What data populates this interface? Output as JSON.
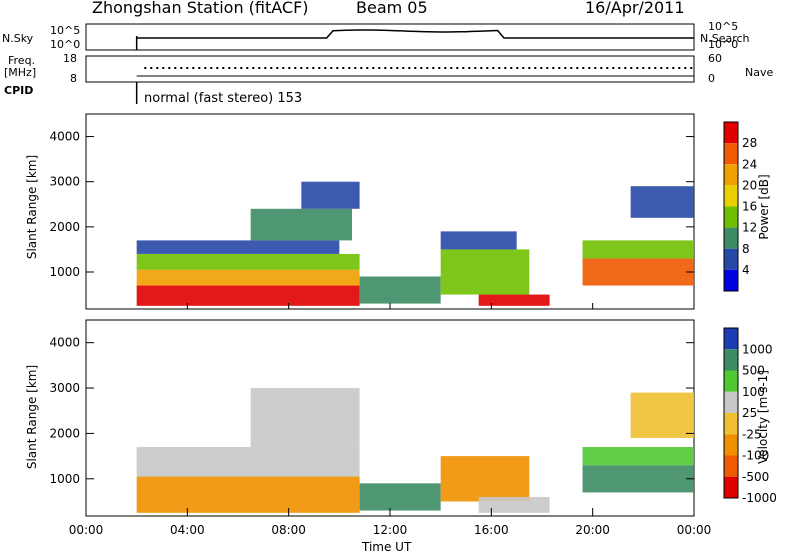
{
  "header": {
    "station": "Zhongshan Station (fitACF)",
    "beam": "Beam 05",
    "date": "16/Apr/2011"
  },
  "top_panels": {
    "sky_label": "N.Sky",
    "search_label": "N.Search",
    "sky_ticks": [
      "10^5",
      "10^0"
    ],
    "search_ticks": [
      "10^5",
      "10^0"
    ],
    "freq_label_1": "Freq.",
    "freq_label_2": "[MHz]",
    "freq_ticks": [
      "18",
      "8"
    ],
    "nave_label": "Nave",
    "nave_ticks": [
      "60",
      "0"
    ],
    "cpid_label": "CPID",
    "cpid_text": "normal (fast stereo) 153"
  },
  "chart_data": [
    {
      "type": "heatmap",
      "name": "power",
      "ylabel": "Slant Range [km]",
      "y_ticks": [
        "4000",
        "3000",
        "2000",
        "1000"
      ],
      "ylim": [
        180,
        4500
      ],
      "colorbar": {
        "label": "Power [dB]",
        "ticks": [
          "28",
          "24",
          "20",
          "16",
          "12",
          "8",
          "4"
        ],
        "colors": [
          "#e00000",
          "#f05a00",
          "#f0a000",
          "#e8d000",
          "#70c000",
          "#3c8c64",
          "#2848a8",
          "#0000e0"
        ]
      },
      "regions": [
        {
          "t0": 2.0,
          "t1": 10.8,
          "r0": 250,
          "r1": 700,
          "level": 0
        },
        {
          "t0": 2.0,
          "t1": 10.8,
          "r0": 700,
          "r1": 1050,
          "level": 2
        },
        {
          "t0": 2.0,
          "t1": 10.8,
          "r0": 1050,
          "r1": 1400,
          "level": 4
        },
        {
          "t0": 2.0,
          "t1": 10.0,
          "r0": 1400,
          "r1": 1700,
          "level": 6
        },
        {
          "t0": 6.5,
          "t1": 10.5,
          "r0": 1700,
          "r1": 2400,
          "level": 5
        },
        {
          "t0": 8.5,
          "t1": 10.8,
          "r0": 2400,
          "r1": 3000,
          "level": 6
        },
        {
          "t0": 10.8,
          "t1": 14.0,
          "r0": 300,
          "r1": 900,
          "level": 5
        },
        {
          "t0": 14.0,
          "t1": 17.5,
          "r0": 500,
          "r1": 1500,
          "level": 4
        },
        {
          "t0": 14.0,
          "t1": 17.0,
          "r0": 1500,
          "r1": 1900,
          "level": 6
        },
        {
          "t0": 15.5,
          "t1": 18.3,
          "r0": 250,
          "r1": 500,
          "level": 0
        },
        {
          "t0": 19.6,
          "t1": 24.0,
          "r0": 700,
          "r1": 1300,
          "level": 1
        },
        {
          "t0": 19.6,
          "t1": 24.0,
          "r0": 1300,
          "r1": 1700,
          "level": 4
        },
        {
          "t0": 21.5,
          "t1": 24.0,
          "r0": 2200,
          "r1": 2900,
          "level": 6
        }
      ]
    },
    {
      "type": "heatmap",
      "name": "velocity",
      "ylabel": "Slant Range [km]",
      "y_ticks": [
        "4000",
        "3000",
        "2000",
        "1000"
      ],
      "ylim": [
        180,
        4500
      ],
      "colorbar": {
        "label": "Velocity [m s-1]",
        "ticks": [
          "1000",
          "500",
          "100",
          "25",
          "-25",
          "-100",
          "-500",
          "-1000"
        ],
        "colors": [
          "#1e3cb4",
          "#3c8c64",
          "#50c830",
          "#c8c8c8",
          "#f0c030",
          "#f09000",
          "#f05a00",
          "#e00000"
        ]
      },
      "regions": [
        {
          "t0": 2.0,
          "t1": 10.8,
          "r0": 250,
          "r1": 1050,
          "level": 5
        },
        {
          "t0": 2.0,
          "t1": 10.8,
          "r0": 1050,
          "r1": 1700,
          "level": 3
        },
        {
          "t0": 6.5,
          "t1": 10.8,
          "r0": 1700,
          "r1": 3000,
          "level": 3
        },
        {
          "t0": 10.8,
          "t1": 14.0,
          "r0": 300,
          "r1": 900,
          "level": 1
        },
        {
          "t0": 14.0,
          "t1": 17.5,
          "r0": 500,
          "r1": 1500,
          "level": 5
        },
        {
          "t0": 15.5,
          "t1": 18.3,
          "r0": 250,
          "r1": 600,
          "level": 3
        },
        {
          "t0": 19.6,
          "t1": 24.0,
          "r0": 700,
          "r1": 1300,
          "level": 1
        },
        {
          "t0": 19.6,
          "t1": 24.0,
          "r0": 1300,
          "r1": 1700,
          "level": 2
        },
        {
          "t0": 21.5,
          "t1": 24.0,
          "r0": 1900,
          "r1": 2900,
          "level": 4
        }
      ]
    }
  ],
  "xaxis": {
    "label": "Time UT",
    "ticks": [
      "00:00",
      "04:00",
      "08:00",
      "12:00",
      "16:00",
      "20:00",
      "00:00"
    ]
  }
}
